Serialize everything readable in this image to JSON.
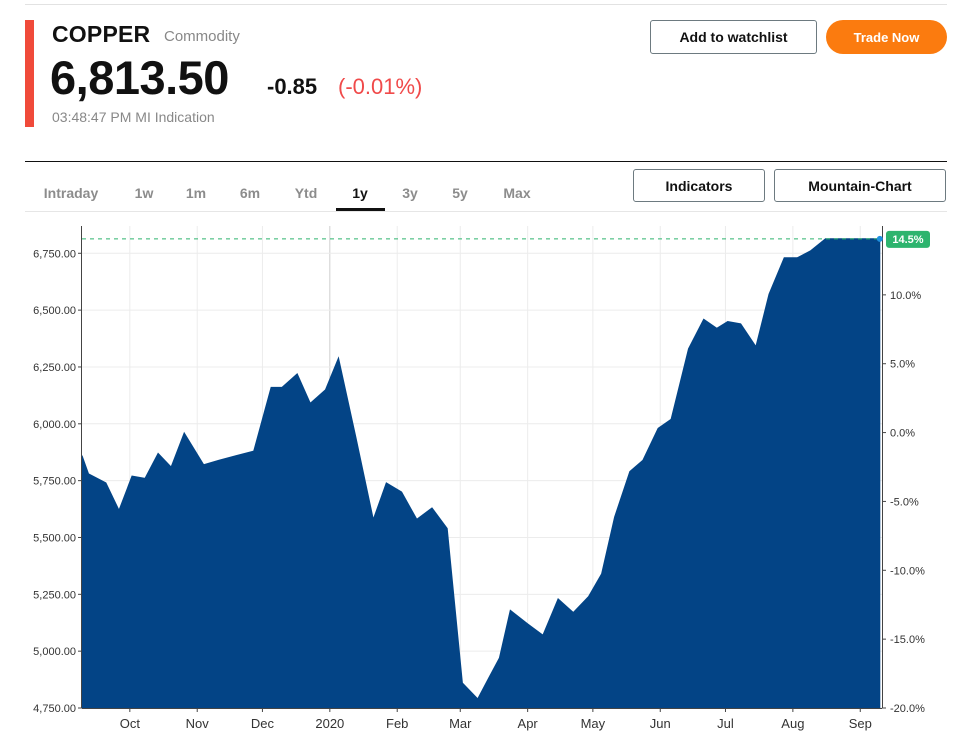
{
  "header": {
    "name": "COPPER",
    "type": "Commodity",
    "price": "6,813.50",
    "change": "-0.85",
    "change_pct": "(-0.01%)",
    "timestamp": "03:48:47 PM MI Indication",
    "watchlist_label": "Add to watchlist",
    "trade_label": "Trade Now"
  },
  "tabs": [
    "Intraday",
    "1w",
    "1m",
    "6m",
    "Ytd",
    "1y",
    "3y",
    "5y",
    "Max"
  ],
  "active_tab": "1y",
  "tools": {
    "indicators_label": "Indicators",
    "chart_type_label": "Mountain-Chart"
  },
  "colors": {
    "accent": "#f04a3a",
    "trade": "#fb7b0f",
    "area": "#034486",
    "negative": "#f04a4a",
    "badge": "#2db46e"
  },
  "chart_data": {
    "type": "area",
    "x_tick_labels": [
      "Oct",
      "Nov",
      "Dec",
      "2020",
      "Feb",
      "Mar",
      "Apr",
      "May",
      "Jun",
      "Jul",
      "Aug",
      "Sep"
    ],
    "y_ticks": [
      "4,750.00",
      "5,000.00",
      "5,250.00",
      "5,500.00",
      "5,750.00",
      "6,000.00",
      "6,250.00",
      "6,500.00",
      "6,750.00"
    ],
    "y2_ticks": [
      "-20.0%",
      "-15.0%",
      "-10.0%",
      "-5.0%",
      "0.0%",
      "5.0%",
      "10.0%"
    ],
    "ylim": [
      4750,
      6870
    ],
    "y2lim": [
      -20.0,
      15.0
    ],
    "last_change_badge": "14.5%",
    "last_value": 6813.5,
    "grid": true,
    "series": [
      {
        "x": [
          "2019-09-09",
          "2019-09-12",
          "2019-09-20",
          "2019-09-26",
          "2019-10-02",
          "2019-10-08",
          "2019-10-14",
          "2019-10-20",
          "2019-10-26",
          "2019-11-04",
          "2019-11-11",
          "2019-11-19",
          "2019-11-27",
          "2019-12-05",
          "2019-12-10",
          "2019-12-17",
          "2019-12-23",
          "2019-12-30",
          "2020-01-05",
          "2020-01-13",
          "2020-01-21",
          "2020-01-27",
          "2020-02-03",
          "2020-02-10",
          "2020-02-17",
          "2020-02-24",
          "2020-03-02",
          "2020-03-09",
          "2020-03-14",
          "2020-03-19",
          "2020-03-24",
          "2020-04-01",
          "2020-04-08",
          "2020-04-15",
          "2020-04-22",
          "2020-04-29",
          "2020-05-05",
          "2020-05-11",
          "2020-05-18",
          "2020-05-24",
          "2020-05-31",
          "2020-06-06",
          "2020-06-14",
          "2020-06-21",
          "2020-06-27",
          "2020-07-02",
          "2020-07-08",
          "2020-07-15",
          "2020-07-21",
          "2020-07-28",
          "2020-08-03",
          "2020-08-09",
          "2020-08-16",
          "2020-08-24",
          "2020-08-30",
          "2020-09-06",
          "2020-09-10"
        ],
        "y": [
          5860,
          5780,
          5740,
          5620,
          5770,
          5760,
          5870,
          5810,
          5960,
          5820,
          5840,
          5860,
          5880,
          6160,
          6160,
          6220,
          6090,
          6150,
          6290,
          5940,
          5580,
          5740,
          5700,
          5580,
          5630,
          5540,
          4860,
          4790,
          4880,
          4970,
          5180,
          5120,
          5070,
          5230,
          5170,
          5240,
          5340,
          5590,
          5790,
          5840,
          5980,
          6020,
          6330,
          6460,
          6420,
          6450,
          6440,
          6340,
          6570,
          6730,
          6730,
          6760,
          6813.5,
          6813.5,
          6813.5,
          6813.5,
          6813.5
        ]
      }
    ]
  }
}
